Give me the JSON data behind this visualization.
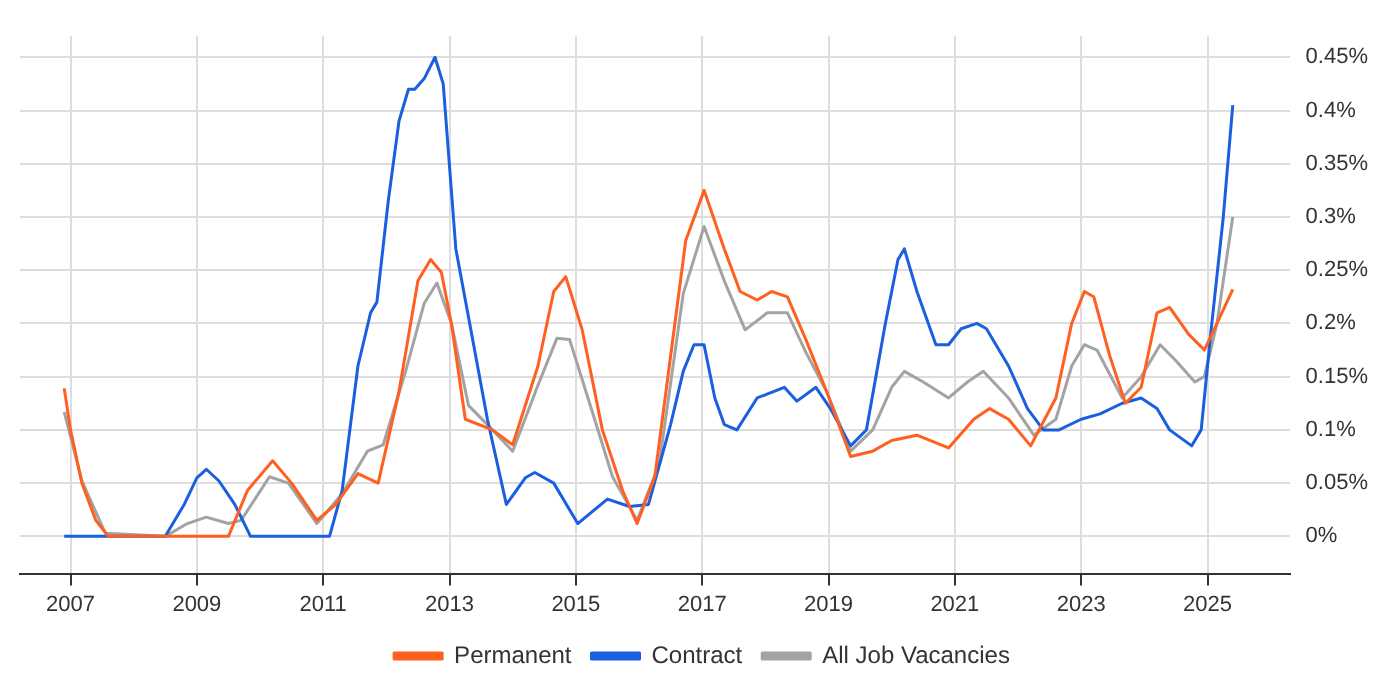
{
  "chart_data": {
    "type": "line",
    "legend": "bottom",
    "grid": true,
    "marker": "none",
    "line_style": "solid",
    "xlim": [
      2006.2,
      2026.3
    ],
    "xticks": [
      2007,
      2009,
      2011,
      2013,
      2015,
      2017,
      2019,
      2021,
      2023,
      2025
    ],
    "ylim": [
      -0.035,
      0.47
    ],
    "yticks": [
      {
        "value": 0,
        "label": "0%"
      },
      {
        "value": 0.05,
        "label": "0.05%"
      },
      {
        "value": 0.1,
        "label": "0.1%"
      },
      {
        "value": 0.15,
        "label": "0.15%"
      },
      {
        "value": 0.2,
        "label": "0.2%"
      },
      {
        "value": 0.25,
        "label": "0.25%"
      },
      {
        "value": 0.3,
        "label": "0.3%"
      },
      {
        "value": 0.35,
        "label": "0.35%"
      },
      {
        "value": 0.4,
        "label": "0.4%"
      },
      {
        "value": 0.45,
        "label": "0.45%"
      }
    ],
    "series": [
      {
        "name": "Permanent",
        "color": "#ff5f1f",
        "x": [
          2006.9,
          2007.0,
          2007.18,
          2007.4,
          2007.6,
          2009.5,
          2009.8,
          2010.2,
          2010.5,
          2010.9,
          2011.2,
          2011.55,
          2011.87,
          2012.2,
          2012.5,
          2012.7,
          2012.87,
          2013.03,
          2013.25,
          2013.68,
          2014.0,
          2014.4,
          2014.65,
          2014.84,
          2015.1,
          2015.42,
          2015.74,
          2015.97,
          2016.25,
          2016.74,
          2017.03,
          2017.35,
          2017.6,
          2017.87,
          2018.1,
          2018.35,
          2018.64,
          2018.97,
          2019.35,
          2019.7,
          2020.0,
          2020.4,
          2020.9,
          2021.3,
          2021.55,
          2021.85,
          2022.2,
          2022.6,
          2022.85,
          2023.05,
          2023.2,
          2023.45,
          2023.7,
          2023.95,
          2024.2,
          2024.4,
          2024.7,
          2024.95,
          2025.15,
          2025.4
        ],
        "values": [
          0.139,
          0.1,
          0.05,
          0.015,
          0,
          0,
          0.043,
          0.071,
          0.05,
          0.015,
          0.03,
          0.059,
          0.05,
          0.136,
          0.24,
          0.26,
          0.248,
          0.2,
          0.11,
          0.1,
          0.086,
          0.16,
          0.23,
          0.244,
          0.194,
          0.1,
          0.043,
          0.012,
          0.056,
          0.278,
          0.325,
          0.27,
          0.23,
          0.222,
          0.23,
          0.225,
          0.185,
          0.136,
          0.075,
          0.08,
          0.09,
          0.095,
          0.083,
          0.11,
          0.12,
          0.11,
          0.085,
          0.13,
          0.2,
          0.23,
          0.225,
          0.17,
          0.125,
          0.14,
          0.21,
          0.215,
          0.19,
          0.175,
          0.2,
          0.232
        ]
      },
      {
        "name": "Contract",
        "color": "#1a5fe0",
        "x": [
          2006.9,
          2008.5,
          2008.8,
          2009.0,
          2009.15,
          2009.35,
          2009.6,
          2009.85,
          2011.1,
          2011.3,
          2011.55,
          2011.75,
          2011.85,
          2012.03,
          2012.2,
          2012.35,
          2012.45,
          2012.6,
          2012.77,
          2012.9,
          2013.1,
          2013.35,
          2013.6,
          2013.9,
          2014.2,
          2014.35,
          2014.65,
          2015.03,
          2015.5,
          2015.85,
          2016.15,
          2016.5,
          2016.7,
          2016.87,
          2017.03,
          2017.2,
          2017.35,
          2017.55,
          2017.87,
          2018.3,
          2018.5,
          2018.8,
          2019.03,
          2019.35,
          2019.6,
          2019.9,
          2020.1,
          2020.2,
          2020.4,
          2020.7,
          2020.9,
          2021.1,
          2021.35,
          2021.5,
          2021.85,
          2022.15,
          2022.4,
          2022.65,
          2023.0,
          2023.3,
          2023.65,
          2023.95,
          2024.2,
          2024.4,
          2024.75,
          2024.9,
          2025.05,
          2025.25,
          2025.4
        ],
        "values": [
          0,
          0,
          0.03,
          0.055,
          0.063,
          0.052,
          0.03,
          0,
          0,
          0.043,
          0.16,
          0.21,
          0.22,
          0.315,
          0.39,
          0.42,
          0.42,
          0.43,
          0.45,
          0.425,
          0.27,
          0.19,
          0.11,
          0.03,
          0.055,
          0.06,
          0.05,
          0.012,
          0.035,
          0.028,
          0.03,
          0.105,
          0.155,
          0.18,
          0.18,
          0.13,
          0.105,
          0.1,
          0.13,
          0.14,
          0.127,
          0.14,
          0.12,
          0.085,
          0.1,
          0.2,
          0.26,
          0.27,
          0.23,
          0.18,
          0.18,
          0.195,
          0.2,
          0.195,
          0.16,
          0.12,
          0.1,
          0.1,
          0.11,
          0.115,
          0.125,
          0.13,
          0.12,
          0.1,
          0.085,
          0.1,
          0.19,
          0.3,
          0.405
        ]
      },
      {
        "name": "All Job Vacancies",
        "color": "#a3a3a3",
        "x": [
          2006.9,
          2007.18,
          2007.55,
          2008.5,
          2008.85,
          2009.15,
          2009.5,
          2009.7,
          2010.15,
          2010.45,
          2010.9,
          2011.3,
          2011.7,
          2011.95,
          2012.3,
          2012.6,
          2012.8,
          2013.03,
          2013.3,
          2013.68,
          2014.0,
          2014.4,
          2014.7,
          2014.9,
          2015.26,
          2015.58,
          2015.97,
          2016.32,
          2016.7,
          2017.03,
          2017.35,
          2017.68,
          2018.03,
          2018.35,
          2018.64,
          2018.97,
          2019.35,
          2019.7,
          2020.0,
          2020.2,
          2020.5,
          2020.9,
          2021.2,
          2021.45,
          2021.85,
          2022.25,
          2022.6,
          2022.85,
          2023.05,
          2023.25,
          2023.65,
          2023.95,
          2024.25,
          2024.5,
          2024.8,
          2024.95,
          2025.15,
          2025.4
        ],
        "values": [
          0.117,
          0.052,
          0.003,
          0,
          0.012,
          0.018,
          0.012,
          0.015,
          0.056,
          0.05,
          0.012,
          0.04,
          0.08,
          0.086,
          0.154,
          0.219,
          0.238,
          0.2,
          0.123,
          0.1,
          0.08,
          0.142,
          0.186,
          0.185,
          0.117,
          0.056,
          0.015,
          0.068,
          0.228,
          0.291,
          0.24,
          0.194,
          0.21,
          0.21,
          0.173,
          0.136,
          0.08,
          0.1,
          0.14,
          0.155,
          0.145,
          0.13,
          0.145,
          0.155,
          0.13,
          0.095,
          0.11,
          0.16,
          0.18,
          0.175,
          0.13,
          0.15,
          0.18,
          0.165,
          0.145,
          0.15,
          0.2,
          0.3
        ]
      }
    ]
  }
}
